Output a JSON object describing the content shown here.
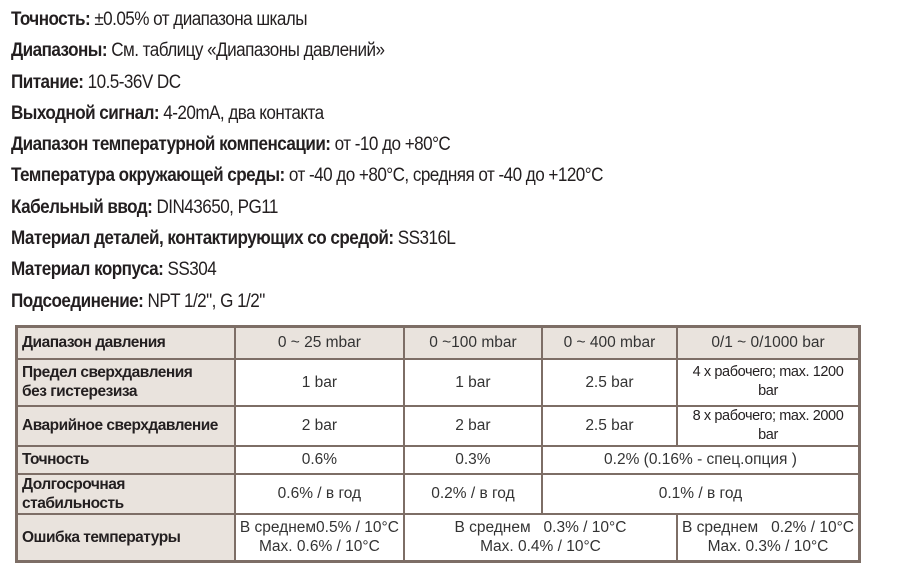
{
  "specs": [
    {
      "label": "Точность:",
      "value": " ±0.05% от диапазона шкалы"
    },
    {
      "label": "Диапазоны:",
      "value": " См. таблицу «Диапазоны давлений»"
    },
    {
      "label": "Питание:",
      "value": " 10.5-36V DC"
    },
    {
      "label": "Выходной сигнал:",
      "value": " 4-20mA, два контакта"
    },
    {
      "label": "Диапазон температурной компенсации:",
      "value": " от -10 до +80°C"
    },
    {
      "label": "Температура окружающей среды:",
      "value": " от -40 до +80°C, средняя от -40 до +120°C"
    },
    {
      "label": "Кабельный ввод:",
      "value": " DIN43650, PG11"
    },
    {
      "label": "Материал деталей, контактирующих со средой:",
      "value": " SS316L"
    },
    {
      "label": "Материал корпуса:",
      "value": " SS304"
    },
    {
      "label": "Подсоединение:",
      "value": " NPT 1/2\", G 1/2\""
    }
  ],
  "table": {
    "header": [
      "Диапазон давления",
      "0 ~ 25 mbar",
      "0 ~100 mbar",
      "0 ~ 400 mbar",
      "0/1 ~ 0/1000 bar"
    ],
    "overpressure": {
      "label_1": "Предел сверхдавления",
      "label_2": "без гистерезиза",
      "values": [
        "1 bar",
        "1 bar",
        "2.5 bar",
        "4 x рабочего; max. 1200 bar"
      ]
    },
    "burst": {
      "label": "Аварийное сверхдавление",
      "values": [
        "2 bar",
        "2 bar",
        "2.5 bar",
        "8 x рабочего; max. 2000 bar"
      ]
    },
    "accuracy": {
      "label": "Точность",
      "values": [
        "0.6%",
        "0.3%",
        "0.2% (0.16% -  спец.опция  )"
      ]
    },
    "stability": {
      "label": "Долгосрочная стабильность",
      "values": [
        "0.6% / в год",
        "0.2% / в год",
        "0.1% / в год"
      ]
    },
    "temp_error": {
      "label": "Ошибка температуры",
      "cells": [
        {
          "avg": "В среднем0.5% / 10°C",
          "max": "Max. 0.6% / 10°C"
        },
        {
          "avg": "В среднем   0.3% / 10°C",
          "max": "Max. 0.4% / 10°C"
        },
        {
          "avg": "В среднем   0.2% / 10°C",
          "max": "Max. 0.3% / 10°C"
        }
      ]
    }
  }
}
